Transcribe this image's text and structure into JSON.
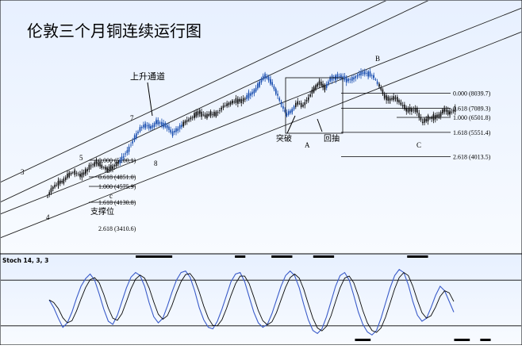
{
  "colors": {
    "background_top": "#e7f0ff",
    "background_bottom": "#f8fbff",
    "candle_blue": "#1a4fb0",
    "candle_black": "#111111",
    "channel": "#222222",
    "stoch_line": "#3a5bc9",
    "stoch_signal": "#0a0a0a",
    "marker": "#000000"
  },
  "chart_data": [
    {
      "type": "line",
      "title": "伦敦三个月铜连续运行图",
      "xlabel": "",
      "ylabel": "",
      "grid": false,
      "annotations": {
        "channel_label": "上升通道",
        "breakout": "突破",
        "pullback": "回抽",
        "support": "支撑位",
        "wave_labels": [
          "1",
          "2",
          "3",
          "4",
          "5",
          "7",
          "8",
          "a",
          "b",
          "c",
          "A",
          "B",
          "C"
        ]
      },
      "fib_upper": [
        {
          "ratio": "0.000",
          "price": "8039.7"
        },
        {
          "ratio": "0.618",
          "price": "7089.3"
        },
        {
          "ratio": "1.000",
          "price": "6501.8"
        },
        {
          "ratio": "1.618",
          "price": "5551.4"
        },
        {
          "ratio": "2.618",
          "price": "4013.5"
        }
      ],
      "fib_lower_labels": [
        "0.000 (5200.1)",
        "0.618 (4851.0)",
        "1.000 (4575.9)",
        "1.618 (4130.8)",
        "2.618 (3410.6)"
      ],
      "price_path": [
        [
          0,
          3650
        ],
        [
          3,
          3820
        ],
        [
          6,
          3900
        ],
        [
          9,
          3960
        ],
        [
          12,
          4080
        ],
        [
          15,
          4120
        ],
        [
          18,
          4050
        ],
        [
          21,
          4120
        ],
        [
          24,
          4240
        ],
        [
          27,
          4300
        ],
        [
          30,
          4230
        ],
        [
          33,
          4160
        ],
        [
          36,
          4210
        ],
        [
          39,
          4290
        ],
        [
          42,
          4410
        ],
        [
          45,
          4570
        ],
        [
          48,
          4760
        ],
        [
          51,
          4940
        ],
        [
          54,
          5010
        ],
        [
          57,
          4960
        ],
        [
          60,
          5060
        ],
        [
          63,
          5040
        ],
        [
          66,
          4980
        ],
        [
          69,
          4860
        ],
        [
          72,
          4930
        ],
        [
          75,
          5040
        ],
        [
          78,
          5110
        ],
        [
          81,
          5180
        ],
        [
          84,
          5250
        ],
        [
          87,
          5180
        ],
        [
          90,
          5220
        ],
        [
          93,
          5210
        ],
        [
          96,
          5330
        ],
        [
          99,
          5400
        ],
        [
          102,
          5450
        ],
        [
          105,
          5470
        ],
        [
          108,
          5480
        ],
        [
          111,
          5560
        ],
        [
          114,
          5640
        ],
        [
          117,
          5800
        ],
        [
          120,
          5950
        ],
        [
          123,
          5850
        ],
        [
          126,
          5660
        ],
        [
          129,
          5420
        ],
        [
          132,
          5210
        ],
        [
          135,
          5280
        ],
        [
          138,
          5440
        ],
        [
          141,
          5380
        ],
        [
          144,
          5520
        ],
        [
          147,
          5700
        ],
        [
          150,
          5820
        ],
        [
          153,
          5710
        ],
        [
          156,
          5880
        ],
        [
          159,
          5920
        ],
        [
          162,
          5940
        ],
        [
          165,
          5870
        ],
        [
          168,
          5880
        ],
        [
          171,
          5950
        ],
        [
          174,
          6000
        ],
        [
          177,
          5990
        ],
        [
          180,
          5930
        ],
        [
          183,
          5760
        ],
        [
          186,
          5560
        ],
        [
          189,
          5500
        ],
        [
          192,
          5520
        ],
        [
          195,
          5420
        ],
        [
          198,
          5300
        ],
        [
          201,
          5300
        ],
        [
          204,
          5280
        ],
        [
          207,
          5060
        ],
        [
          210,
          5140
        ],
        [
          213,
          5160
        ],
        [
          216,
          5190
        ],
        [
          219,
          5300
        ],
        [
          222,
          5240
        ],
        [
          225,
          5300
        ]
      ]
    },
    {
      "type": "line",
      "title": "Stoch 14, 3, 3",
      "ylim": [
        0,
        100
      ],
      "levels": [
        80,
        20
      ],
      "k_values": [
        54,
        44,
        30,
        18,
        24,
        38,
        56,
        72,
        82,
        88,
        80,
        62,
        42,
        26,
        22,
        34,
        52,
        70,
        84,
        90,
        86,
        72,
        50,
        32,
        24,
        30,
        46,
        64,
        80,
        90,
        92,
        84,
        66,
        44,
        28,
        18,
        16,
        26,
        42,
        60,
        78,
        88,
        90,
        78,
        58,
        38,
        24,
        18,
        22,
        36,
        54,
        72,
        86,
        92,
        86,
        70,
        48,
        28,
        14,
        10,
        16,
        32,
        52,
        72,
        86,
        90,
        80,
        60,
        38,
        22,
        12,
        8,
        14,
        30,
        50,
        70,
        86,
        94,
        90,
        74,
        52,
        34,
        26,
        30,
        44,
        60,
        72,
        66,
        52,
        38
      ],
      "overbought_markers": [
        [
          0.26,
          0.33
        ],
        [
          0.45,
          0.47
        ],
        [
          0.52,
          0.56
        ],
        [
          0.6,
          0.64
        ],
        [
          0.78,
          0.82
        ]
      ],
      "oversold_markers": [
        [
          0.68,
          0.71
        ],
        [
          0.87,
          0.9
        ],
        [
          0.92,
          0.94
        ]
      ]
    }
  ]
}
